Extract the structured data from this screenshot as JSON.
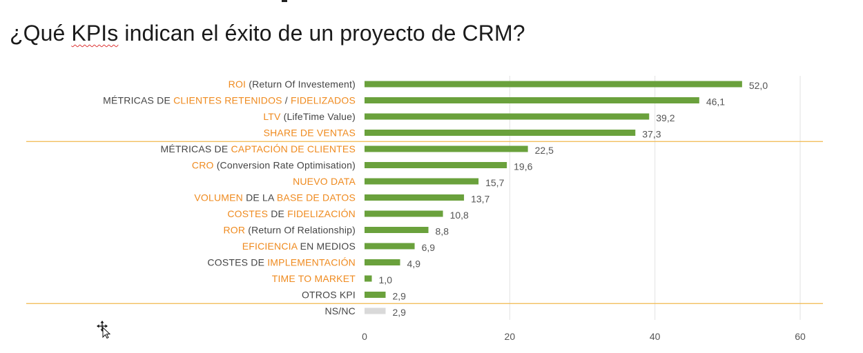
{
  "title": {
    "part1": "¿Qué ",
    "part2": "KPIs",
    "part3": " indican el éxito de un proyecto de CRM?"
  },
  "colors": {
    "bar": "#6aa13c",
    "bar_nsnc": "#d9d9d9",
    "orange": "#ef8a1e",
    "dark": "#444444",
    "value": "#555555",
    "grid": "#e2e2e2",
    "separator": "#f0b84c"
  },
  "chart_data": {
    "type": "bar",
    "orientation": "horizontal",
    "xlim": [
      0,
      60
    ],
    "xticks": [
      0,
      20,
      40,
      60
    ],
    "grid": true,
    "categories": [
      "ROI (Return Of Investement)",
      "MÉTRICAS DE CLIENTES RETENIDOS / FIDELIZADOS",
      "LTV (LifeTime Value)",
      "SHARE DE VENTAS",
      "MÉTRICAS DE CAPTACIÓN DE CLIENTES",
      "CRO (Conversion Rate Optimisation)",
      "NUEVO DATA",
      "VOLUMEN DE LA BASE DE DATOS",
      "COSTES DE FIDELIZACIÓN",
      "ROR (Return Of Relationship)",
      "EFICIENCIA EN MEDIOS",
      "COSTES DE IMPLEMENTACIÓN",
      "TIME TO MARKET",
      "OTROS KPI",
      "NS/NC"
    ],
    "values": [
      52.0,
      46.1,
      39.2,
      37.3,
      22.5,
      19.6,
      15.7,
      13.7,
      10.8,
      8.8,
      6.9,
      4.9,
      1.0,
      2.9,
      2.9
    ],
    "value_labels": [
      "52,0",
      "46,1",
      "39,2",
      "37,3",
      "22,5",
      "19,6",
      "15,7",
      "13,7",
      "10,8",
      "8,8",
      "6,9",
      "4,9",
      "1,0",
      "2,9",
      "2,9"
    ],
    "label_segments": [
      [
        {
          "t": "ROI",
          "c": "orange"
        },
        {
          "t": " (Return Of Investement)",
          "c": "dark"
        }
      ],
      [
        {
          "t": "MÉTRICAS DE ",
          "c": "dark"
        },
        {
          "t": "CLIENTES RETENIDOS",
          "c": "orange"
        },
        {
          "t": " / ",
          "c": "dark"
        },
        {
          "t": "FIDELIZADOS",
          "c": "orange"
        }
      ],
      [
        {
          "t": "LTV",
          "c": "orange"
        },
        {
          "t": " (LifeTime Value)",
          "c": "dark"
        }
      ],
      [
        {
          "t": "SHARE DE VENTAS",
          "c": "orange"
        }
      ],
      [
        {
          "t": "MÉTRICAS DE ",
          "c": "dark"
        },
        {
          "t": "CAPTACIÓN DE CLIENTES",
          "c": "orange"
        }
      ],
      [
        {
          "t": "CRO",
          "c": "orange"
        },
        {
          "t": " (Conversion Rate Optimisation)",
          "c": "dark"
        }
      ],
      [
        {
          "t": "NUEVO DATA",
          "c": "orange"
        }
      ],
      [
        {
          "t": "VOLUMEN",
          "c": "orange"
        },
        {
          "t": " DE LA ",
          "c": "dark"
        },
        {
          "t": "BASE DE DATOS",
          "c": "orange"
        }
      ],
      [
        {
          "t": "COSTES",
          "c": "orange"
        },
        {
          "t": " DE ",
          "c": "dark"
        },
        {
          "t": "FIDELIZACIÓN",
          "c": "orange"
        }
      ],
      [
        {
          "t": "ROR",
          "c": "orange"
        },
        {
          "t": " (Return Of Relationship)",
          "c": "dark"
        }
      ],
      [
        {
          "t": "EFICIENCIA",
          "c": "orange"
        },
        {
          "t": " EN MEDIOS",
          "c": "dark"
        }
      ],
      [
        {
          "t": "COSTES DE ",
          "c": "dark"
        },
        {
          "t": "IMPLEMENTACIÓN",
          "c": "orange"
        }
      ],
      [
        {
          "t": "TIME TO MARKET",
          "c": "orange"
        }
      ],
      [
        {
          "t": "OTROS KPI",
          "c": "dark"
        }
      ],
      [
        {
          "t": "NS/NC",
          "c": "dark"
        }
      ]
    ],
    "separators_after_index": [
      3,
      13
    ]
  },
  "cursor": {
    "icon": "move-cursor-icon"
  }
}
